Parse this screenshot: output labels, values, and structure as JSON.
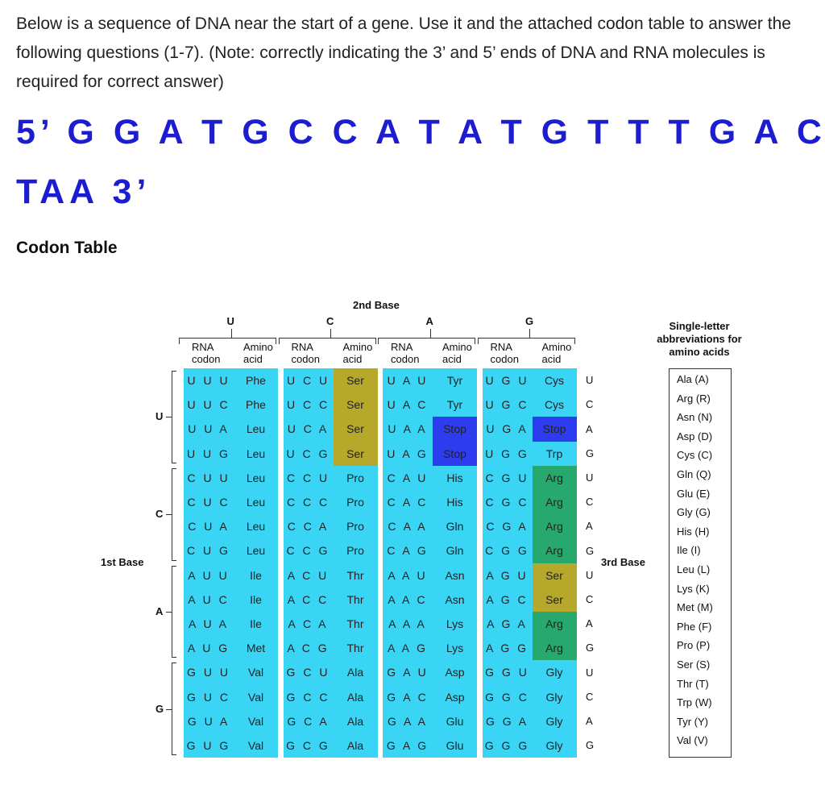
{
  "intro": "Below is a sequence of DNA near the start of a gene. Use it and the attached codon table to answer the following questions (1-7). (Note: correctly indicating the 3’ and 5’ ends of DNA and RNA molecules is required for correct answer)",
  "sequence": [
    "5’ G G A T G C C A T A T G T T T G A C",
    "TAA 3’"
  ],
  "codon_table": {
    "heading": "Codon Table",
    "second_base_label": "2nd Base",
    "first_base_label": "1st Base",
    "third_base_label": "3rd Base",
    "bases": [
      "U",
      "C",
      "A",
      "G"
    ],
    "third_bases": [
      "U",
      "C",
      "A",
      "G"
    ],
    "column_headers": [
      "RNA codon",
      "Amino acid"
    ],
    "cell_color": "#3ad4f5",
    "highlights": {
      "Ser": "#b5a82b",
      "Stop": "#2e3cf0",
      "Arg": "#27a86c"
    },
    "rows": [
      [
        [
          "U U U",
          "Phe"
        ],
        [
          "U C U",
          "Ser"
        ],
        [
          "U A U",
          "Tyr"
        ],
        [
          "U G U",
          "Cys"
        ]
      ],
      [
        [
          "U U C",
          "Phe"
        ],
        [
          "U C C",
          "Ser"
        ],
        [
          "U A C",
          "Tyr"
        ],
        [
          "U G C",
          "Cys"
        ]
      ],
      [
        [
          "U U A",
          "Leu"
        ],
        [
          "U C A",
          "Ser"
        ],
        [
          "U A A",
          "Stop"
        ],
        [
          "U G A",
          "Stop"
        ]
      ],
      [
        [
          "U U G",
          "Leu"
        ],
        [
          "U C G",
          "Ser"
        ],
        [
          "U A G",
          "Stop"
        ],
        [
          "U G G",
          "Trp"
        ]
      ],
      [
        [
          "C U U",
          "Leu"
        ],
        [
          "C C U",
          "Pro"
        ],
        [
          "C A U",
          "His"
        ],
        [
          "C G U",
          "Arg"
        ]
      ],
      [
        [
          "C U C",
          "Leu"
        ],
        [
          "C C C",
          "Pro"
        ],
        [
          "C A C",
          "His"
        ],
        [
          "C G C",
          "Arg"
        ]
      ],
      [
        [
          "C U A",
          "Leu"
        ],
        [
          "C C A",
          "Pro"
        ],
        [
          "C A A",
          "Gln"
        ],
        [
          "C G A",
          "Arg"
        ]
      ],
      [
        [
          "C U G",
          "Leu"
        ],
        [
          "C C G",
          "Pro"
        ],
        [
          "C A G",
          "Gln"
        ],
        [
          "C G G",
          "Arg"
        ]
      ],
      [
        [
          "A U U",
          "Ile"
        ],
        [
          "A C U",
          "Thr"
        ],
        [
          "A A U",
          "Asn"
        ],
        [
          "A G U",
          "Ser"
        ]
      ],
      [
        [
          "A U C",
          "Ile"
        ],
        [
          "A C C",
          "Thr"
        ],
        [
          "A A C",
          "Asn"
        ],
        [
          "A G C",
          "Ser"
        ]
      ],
      [
        [
          "A U A",
          "Ile"
        ],
        [
          "A C A",
          "Thr"
        ],
        [
          "A A A",
          "Lys"
        ],
        [
          "A G A",
          "Arg"
        ]
      ],
      [
        [
          "A U G",
          "Met"
        ],
        [
          "A C G",
          "Thr"
        ],
        [
          "A A G",
          "Lys"
        ],
        [
          "A G G",
          "Arg"
        ]
      ],
      [
        [
          "G U U",
          "Val"
        ],
        [
          "G C U",
          "Ala"
        ],
        [
          "G A U",
          "Asp"
        ],
        [
          "G G U",
          "Gly"
        ]
      ],
      [
        [
          "G U C",
          "Val"
        ],
        [
          "G C C",
          "Ala"
        ],
        [
          "G A C",
          "Asp"
        ],
        [
          "G G C",
          "Gly"
        ]
      ],
      [
        [
          "G U A",
          "Val"
        ],
        [
          "G C A",
          "Ala"
        ],
        [
          "G A A",
          "Glu"
        ],
        [
          "G G A",
          "Gly"
        ]
      ],
      [
        [
          "G U G",
          "Val"
        ],
        [
          "G C G",
          "Ala"
        ],
        [
          "G A G",
          "Glu"
        ],
        [
          "G G G",
          "Gly"
        ]
      ]
    ],
    "abbreviations_title": "Single-letter abbreviations for amino acids",
    "abbreviations": [
      "Ala (A)",
      "Arg (R)",
      "Asn (N)",
      "Asp (D)",
      "Cys (C)",
      "Gln (Q)",
      "Glu (E)",
      "Gly (G)",
      "His (H)",
      "Ile (I)",
      "Leu (L)",
      "Lys (K)",
      "Met (M)",
      "Phe (F)",
      "Pro (P)",
      "Ser (S)",
      "Thr (T)",
      "Trp (W)",
      "Tyr (Y)",
      "Val (V)"
    ]
  }
}
